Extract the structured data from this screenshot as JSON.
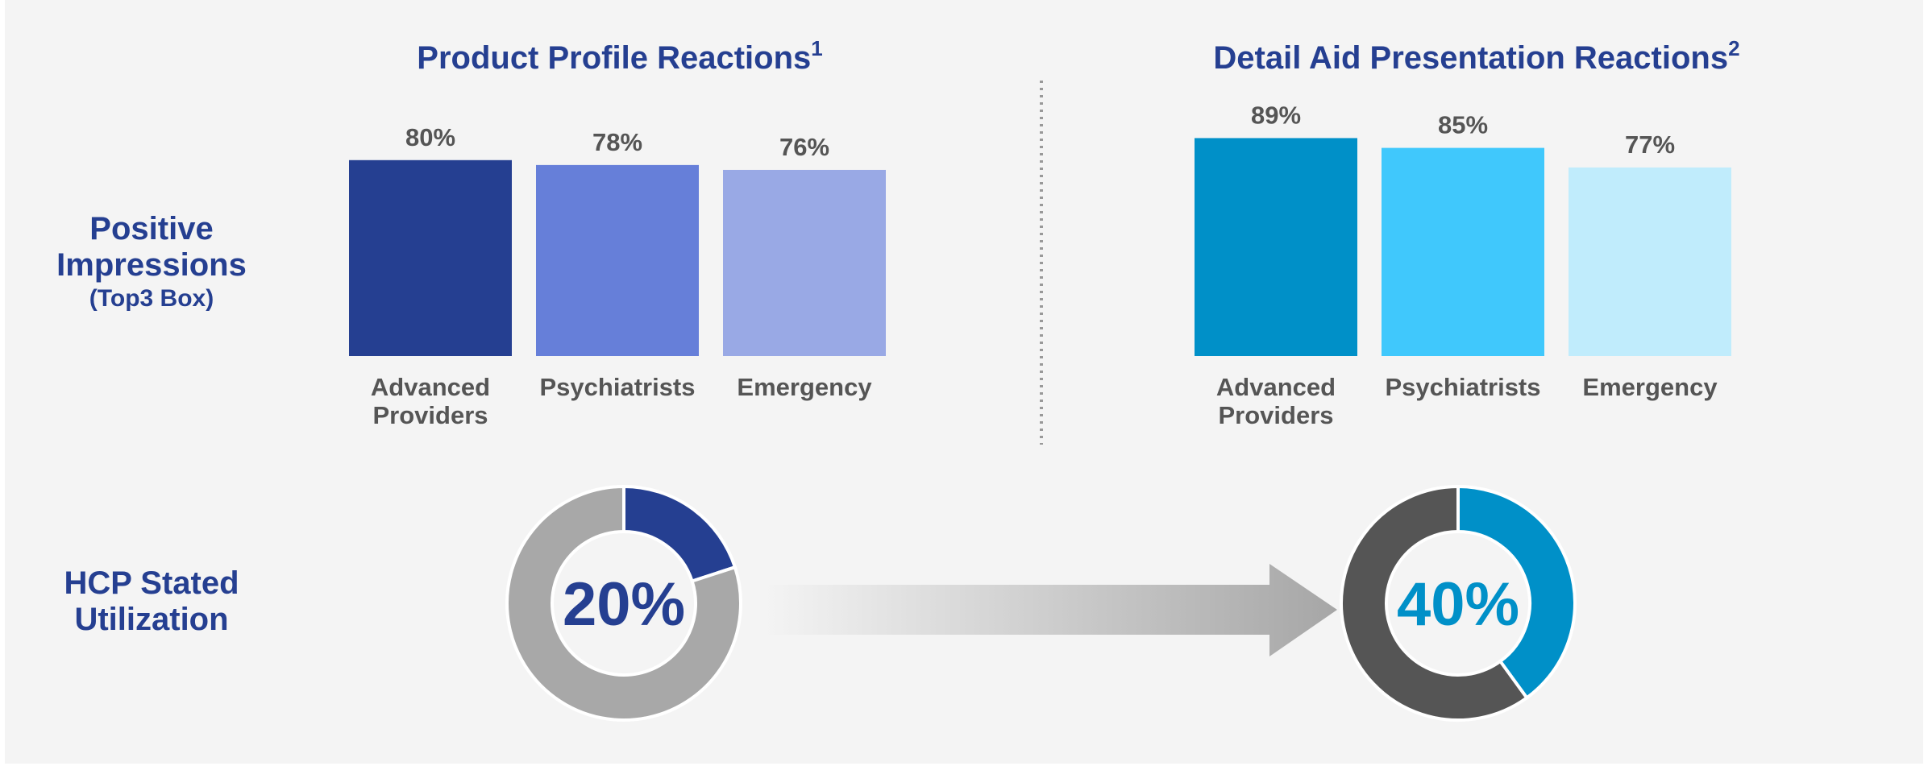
{
  "row_labels": [
    "Positive Impressions",
    "(Top3 Box)",
    "HCP Stated Utilization"
  ],
  "chart_data": [
    {
      "type": "bar",
      "title": "Product Profile Reactions",
      "title_footnote": "1",
      "categories": [
        "Advanced Providers",
        "Psychiatrists",
        "Emergency"
      ],
      "values": [
        80,
        78,
        76
      ],
      "value_labels": [
        "80%",
        "78%",
        "76%"
      ],
      "colors": [
        "#253f91",
        "#667fd9",
        "#99a9e5"
      ]
    },
    {
      "type": "bar",
      "title": "Detail Aid Presentation Reactions",
      "title_footnote": "2",
      "categories": [
        "Advanced Providers",
        "Psychiatrists",
        "Emergency"
      ],
      "values": [
        89,
        85,
        77
      ],
      "value_labels": [
        "89%",
        "85%",
        "77%"
      ],
      "colors": [
        "#0090c8",
        "#40c8fc",
        "#c0ecfc"
      ]
    },
    {
      "type": "donut",
      "values": [
        20,
        80
      ],
      "value_labels": [
        "20%",
        null
      ],
      "colors": [
        "#253f91",
        "#a8a8a8"
      ],
      "label_color": "#253f91"
    },
    {
      "type": "donut",
      "values": [
        40,
        60
      ],
      "value_labels": [
        "40%",
        null
      ],
      "colors": [
        "#0090c8",
        "#555555"
      ],
      "label_color": "#0090c8"
    }
  ]
}
